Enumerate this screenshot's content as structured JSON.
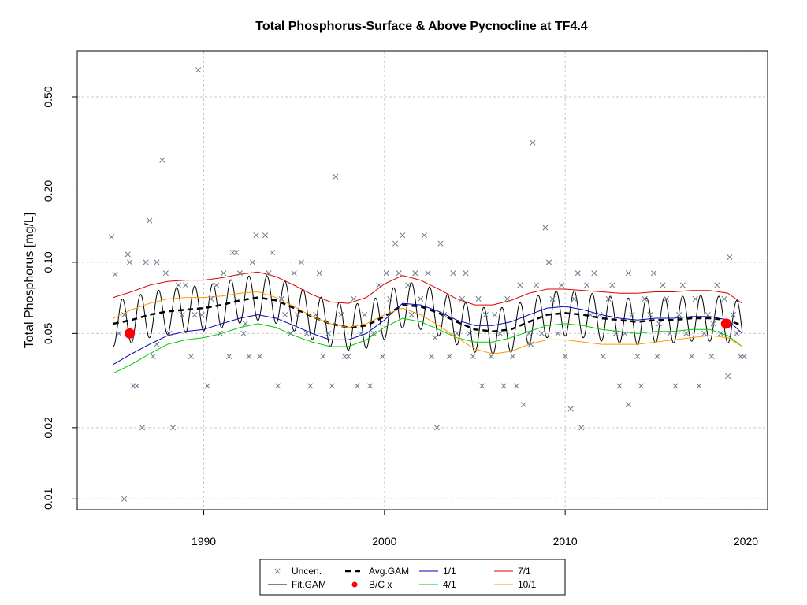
{
  "chart_data": {
    "type": "line",
    "title": "Total Phosphorus-Surface & Above Pycnocline at TF4.4",
    "xlabel": "",
    "ylabel": "Total Phosphorus [mg/L]",
    "y_scale": "log",
    "xlim": [
      1983.0,
      2021.2
    ],
    "ylim": [
      0.009,
      0.78
    ],
    "x_ticks": [
      1990,
      2000,
      2010,
      2020
    ],
    "y_ticks": [
      0.01,
      0.02,
      0.05,
      0.1,
      0.2,
      0.5
    ],
    "y_tick_labels": [
      "0.01",
      "0.02",
      "0.05",
      "0.10",
      "0.20",
      "0.50"
    ],
    "grid": true,
    "legend_position": "bottom",
    "legend": [
      {
        "label": "Uncen.",
        "kind": "x-marker",
        "color": "#6b7a8f"
      },
      {
        "label": "Avg.GAM",
        "kind": "dashed-line",
        "color": "#000000"
      },
      {
        "label": "1/1",
        "kind": "line",
        "color": "#0000bb"
      },
      {
        "label": "7/1",
        "kind": "line",
        "color": "#dd0000"
      },
      {
        "label": "Fit.GAM",
        "kind": "line",
        "color": "#000000"
      },
      {
        "label": "B/C x",
        "kind": "red-dot",
        "color": "#ff0000"
      },
      {
        "label": "4/1",
        "kind": "line",
        "color": "#00cc00"
      },
      {
        "label": "10/1",
        "kind": "line",
        "color": "#ff9900"
      }
    ],
    "series": [
      {
        "name": "Avg.GAM",
        "color": "#000000",
        "style": "dashed",
        "x": [
          1985.0,
          1986.0,
          1987.0,
          1988.0,
          1989.0,
          1990.0,
          1991.0,
          1992.0,
          1993.0,
          1994.0,
          1995.0,
          1996.0,
          1997.0,
          1998.0,
          1999.0,
          2000.0,
          2001.0,
          2002.0,
          2003.0,
          2004.0,
          2005.0,
          2006.0,
          2007.0,
          2008.0,
          2009.0,
          2010.0,
          2011.0,
          2012.0,
          2013.0,
          2014.0,
          2015.0,
          2016.0,
          2017.0,
          2018.0,
          2019.0,
          2019.8
        ],
        "y": [
          0.055,
          0.057,
          0.06,
          0.062,
          0.063,
          0.064,
          0.066,
          0.069,
          0.071,
          0.069,
          0.064,
          0.059,
          0.055,
          0.053,
          0.054,
          0.059,
          0.066,
          0.065,
          0.061,
          0.056,
          0.052,
          0.051,
          0.052,
          0.056,
          0.06,
          0.061,
          0.06,
          0.058,
          0.057,
          0.056,
          0.057,
          0.057,
          0.058,
          0.058,
          0.057,
          0.054
        ]
      },
      {
        "name": "1/1",
        "color": "#0000bb",
        "style": "solid",
        "x": [
          1985.0,
          1986.0,
          1987.0,
          1988.0,
          1989.0,
          1990.0,
          1991.0,
          1992.0,
          1993.0,
          1994.0,
          1995.0,
          1996.0,
          1997.0,
          1998.0,
          1999.0,
          2000.0,
          2001.0,
          2002.0,
          2003.0,
          2004.0,
          2005.0,
          2006.0,
          2007.0,
          2008.0,
          2009.0,
          2010.0,
          2011.0,
          2012.0,
          2013.0,
          2014.0,
          2015.0,
          2016.0,
          2017.0,
          2018.0,
          2019.0,
          2019.8
        ],
        "y": [
          0.037,
          0.041,
          0.045,
          0.049,
          0.051,
          0.052,
          0.055,
          0.058,
          0.06,
          0.058,
          0.054,
          0.05,
          0.047,
          0.047,
          0.05,
          0.057,
          0.067,
          0.066,
          0.062,
          0.057,
          0.054,
          0.054,
          0.056,
          0.06,
          0.064,
          0.065,
          0.063,
          0.06,
          0.058,
          0.057,
          0.058,
          0.058,
          0.059,
          0.059,
          0.057,
          0.05
        ]
      },
      {
        "name": "4/1",
        "color": "#00cc00",
        "style": "solid",
        "x": [
          1985.0,
          1986.0,
          1987.0,
          1988.0,
          1989.0,
          1990.0,
          1991.0,
          1992.0,
          1993.0,
          1994.0,
          1995.0,
          1996.0,
          1997.0,
          1998.0,
          1999.0,
          2000.0,
          2001.0,
          2002.0,
          2003.0,
          2004.0,
          2005.0,
          2006.0,
          2007.0,
          2008.0,
          2009.0,
          2010.0,
          2011.0,
          2012.0,
          2013.0,
          2014.0,
          2015.0,
          2016.0,
          2017.0,
          2018.0,
          2019.0,
          2019.8
        ],
        "y": [
          0.034,
          0.037,
          0.041,
          0.045,
          0.047,
          0.048,
          0.05,
          0.053,
          0.055,
          0.053,
          0.049,
          0.046,
          0.044,
          0.044,
          0.047,
          0.053,
          0.058,
          0.056,
          0.052,
          0.048,
          0.046,
          0.046,
          0.048,
          0.051,
          0.054,
          0.055,
          0.054,
          0.052,
          0.051,
          0.05,
          0.051,
          0.051,
          0.052,
          0.052,
          0.049,
          0.044
        ]
      },
      {
        "name": "7/1",
        "color": "#dd0000",
        "style": "solid",
        "x": [
          1985.0,
          1986.0,
          1987.0,
          1988.0,
          1989.0,
          1990.0,
          1991.0,
          1992.0,
          1993.0,
          1994.0,
          1995.0,
          1996.0,
          1997.0,
          1998.0,
          1999.0,
          2000.0,
          2001.0,
          2002.0,
          2003.0,
          2004.0,
          2005.0,
          2006.0,
          2007.0,
          2008.0,
          2009.0,
          2010.0,
          2011.0,
          2012.0,
          2013.0,
          2014.0,
          2015.0,
          2016.0,
          2017.0,
          2018.0,
          2019.0,
          2019.8
        ],
        "y": [
          0.071,
          0.075,
          0.08,
          0.083,
          0.084,
          0.084,
          0.086,
          0.089,
          0.091,
          0.087,
          0.08,
          0.073,
          0.068,
          0.067,
          0.071,
          0.081,
          0.088,
          0.084,
          0.077,
          0.07,
          0.066,
          0.066,
          0.069,
          0.074,
          0.077,
          0.077,
          0.076,
          0.075,
          0.074,
          0.074,
          0.075,
          0.075,
          0.076,
          0.076,
          0.074,
          0.067
        ]
      },
      {
        "name": "10/1",
        "color": "#ff9900",
        "style": "solid",
        "x": [
          1985.0,
          1986.0,
          1987.0,
          1988.0,
          1989.0,
          1990.0,
          1991.0,
          1992.0,
          1993.0,
          1994.0,
          1995.0,
          1996.0,
          1997.0,
          1998.0,
          1999.0,
          2000.0,
          2001.0,
          2002.0,
          2003.0,
          2004.0,
          2005.0,
          2006.0,
          2007.0,
          2008.0,
          2009.0,
          2010.0,
          2011.0,
          2012.0,
          2013.0,
          2014.0,
          2015.0,
          2016.0,
          2017.0,
          2018.0,
          2019.0,
          2019.8
        ],
        "y": [
          0.058,
          0.063,
          0.067,
          0.07,
          0.071,
          0.071,
          0.072,
          0.074,
          0.075,
          0.071,
          0.065,
          0.059,
          0.055,
          0.053,
          0.055,
          0.06,
          0.064,
          0.06,
          0.054,
          0.048,
          0.043,
          0.041,
          0.042,
          0.045,
          0.047,
          0.047,
          0.046,
          0.045,
          0.045,
          0.045,
          0.046,
          0.047,
          0.048,
          0.049,
          0.048,
          0.044
        ]
      },
      {
        "name": "Fit.GAM",
        "color": "#000000",
        "style": "solid",
        "seasonal_ratio": 1.25,
        "start_x": 1985.0,
        "end_x": 2019.8,
        "baseline": "Avg.GAM"
      }
    ],
    "points_uncensored": [
      [
        1984.9,
        0.128
      ],
      [
        1985.1,
        0.089
      ],
      [
        1985.3,
        0.05
      ],
      [
        1985.6,
        0.06
      ],
      [
        1985.8,
        0.108
      ],
      [
        1985.9,
        0.1
      ],
      [
        1986.1,
        0.03
      ],
      [
        1986.3,
        0.03
      ],
      [
        1986.6,
        0.02
      ],
      [
        1986.8,
        0.1
      ],
      [
        1987.0,
        0.15
      ],
      [
        1987.2,
        0.04
      ],
      [
        1987.4,
        0.1
      ],
      [
        1987.7,
        0.27
      ],
      [
        1987.9,
        0.09
      ],
      [
        1988.1,
        0.05
      ],
      [
        1988.3,
        0.02
      ],
      [
        1988.6,
        0.08
      ],
      [
        1988.8,
        0.06
      ],
      [
        1989.0,
        0.08
      ],
      [
        1989.3,
        0.04
      ],
      [
        1989.5,
        0.06
      ],
      [
        1989.7,
        0.65
      ],
      [
        1989.9,
        0.06
      ],
      [
        1990.2,
        0.03
      ],
      [
        1990.4,
        0.07
      ],
      [
        1990.7,
        0.08
      ],
      [
        1990.9,
        0.05
      ],
      [
        1991.1,
        0.09
      ],
      [
        1991.4,
        0.04
      ],
      [
        1991.6,
        0.11
      ],
      [
        1991.8,
        0.11
      ],
      [
        1992.0,
        0.09
      ],
      [
        1992.2,
        0.05
      ],
      [
        1992.5,
        0.04
      ],
      [
        1992.7,
        0.1
      ],
      [
        1992.9,
        0.13
      ],
      [
        1993.1,
        0.04
      ],
      [
        1993.4,
        0.13
      ],
      [
        1993.6,
        0.09
      ],
      [
        1993.8,
        0.11
      ],
      [
        1994.1,
        0.03
      ],
      [
        1994.3,
        0.07
      ],
      [
        1994.5,
        0.06
      ],
      [
        1994.8,
        0.05
      ],
      [
        1995.0,
        0.09
      ],
      [
        1995.2,
        0.06
      ],
      [
        1995.4,
        0.1
      ],
      [
        1995.7,
        0.05
      ],
      [
        1995.9,
        0.03
      ],
      [
        1996.2,
        0.06
      ],
      [
        1996.4,
        0.09
      ],
      [
        1996.6,
        0.04
      ],
      [
        1996.9,
        0.05
      ],
      [
        1997.1,
        0.03
      ],
      [
        1997.3,
        0.23
      ],
      [
        1997.6,
        0.06
      ],
      [
        1997.8,
        0.04
      ],
      [
        1998.0,
        0.04
      ],
      [
        1998.3,
        0.07
      ],
      [
        1998.5,
        0.03
      ],
      [
        1998.7,
        0.05
      ],
      [
        1998.9,
        0.06
      ],
      [
        1999.2,
        0.03
      ],
      [
        1999.4,
        0.05
      ],
      [
        1999.7,
        0.08
      ],
      [
        1999.9,
        0.04
      ],
      [
        2000.1,
        0.09
      ],
      [
        2000.3,
        0.07
      ],
      [
        2000.6,
        0.12
      ],
      [
        2000.8,
        0.09
      ],
      [
        2001.0,
        0.13
      ],
      [
        2001.3,
        0.08
      ],
      [
        2001.5,
        0.06
      ],
      [
        2001.7,
        0.09
      ],
      [
        2002.0,
        0.07
      ],
      [
        2002.2,
        0.13
      ],
      [
        2002.4,
        0.09
      ],
      [
        2002.6,
        0.04
      ],
      [
        2002.9,
        0.02
      ],
      [
        2003.1,
        0.12
      ],
      [
        2003.3,
        0.06
      ],
      [
        2003.6,
        0.04
      ],
      [
        2003.8,
        0.09
      ],
      [
        2004.0,
        0.05
      ],
      [
        2004.3,
        0.07
      ],
      [
        2004.5,
        0.09
      ],
      [
        2004.7,
        0.05
      ],
      [
        2004.9,
        0.04
      ],
      [
        2005.2,
        0.07
      ],
      [
        2005.4,
        0.03
      ],
      [
        2005.6,
        0.06
      ],
      [
        2005.9,
        0.04
      ],
      [
        2006.1,
        0.06
      ],
      [
        2006.4,
        0.05
      ],
      [
        2006.6,
        0.03
      ],
      [
        2006.8,
        0.07
      ],
      [
        2007.1,
        0.04
      ],
      [
        2007.3,
        0.03
      ],
      [
        2007.5,
        0.08
      ],
      [
        2007.7,
        0.025
      ],
      [
        2008.0,
        0.05
      ],
      [
        2008.2,
        0.32
      ],
      [
        2008.4,
        0.08
      ],
      [
        2008.7,
        0.05
      ],
      [
        2008.9,
        0.14
      ],
      [
        2009.1,
        0.1
      ],
      [
        2009.3,
        0.07
      ],
      [
        2009.6,
        0.05
      ],
      [
        2009.8,
        0.08
      ],
      [
        2010.0,
        0.04
      ],
      [
        2010.3,
        0.024
      ],
      [
        2010.5,
        0.07
      ],
      [
        2010.7,
        0.09
      ],
      [
        2010.9,
        0.02
      ],
      [
        2011.2,
        0.08
      ],
      [
        2011.4,
        0.06
      ],
      [
        2011.6,
        0.09
      ],
      [
        2011.9,
        0.06
      ],
      [
        2012.1,
        0.04
      ],
      [
        2012.4,
        0.07
      ],
      [
        2012.6,
        0.08
      ],
      [
        2012.8,
        0.05
      ],
      [
        2013.0,
        0.03
      ],
      [
        2013.3,
        0.05
      ],
      [
        2013.5,
        0.09
      ],
      [
        2013.7,
        0.06
      ],
      [
        2014.0,
        0.04
      ],
      [
        2014.2,
        0.03
      ],
      [
        2014.4,
        0.07
      ],
      [
        2014.7,
        0.06
      ],
      [
        2014.9,
        0.09
      ],
      [
        2015.1,
        0.04
      ],
      [
        2015.4,
        0.08
      ],
      [
        2015.6,
        0.07
      ],
      [
        2015.8,
        0.05
      ],
      [
        2016.1,
        0.03
      ],
      [
        2016.3,
        0.06
      ],
      [
        2016.5,
        0.08
      ],
      [
        2016.7,
        0.05
      ],
      [
        2017.0,
        0.04
      ],
      [
        2017.2,
        0.07
      ],
      [
        2017.4,
        0.03
      ],
      [
        2017.7,
        0.05
      ],
      [
        2017.9,
        0.06
      ],
      [
        2018.1,
        0.04
      ],
      [
        2018.4,
        0.08
      ],
      [
        2018.6,
        0.05
      ],
      [
        2018.8,
        0.07
      ],
      [
        2019.0,
        0.033
      ],
      [
        2019.1,
        0.105
      ],
      [
        2019.3,
        0.06
      ],
      [
        2019.5,
        0.05
      ],
      [
        2019.7,
        0.04
      ],
      [
        2019.9,
        0.04
      ],
      [
        1985.6,
        0.01
      ],
      [
        1987.4,
        0.045
      ],
      [
        1992.3,
        0.055
      ],
      [
        2002.8,
        0.048
      ],
      [
        2008.1,
        0.045
      ],
      [
        2013.5,
        0.025
      ],
      [
        2015.2,
        0.055
      ],
      [
        2018.2,
        0.055
      ]
    ],
    "points_bc": [
      [
        1985.9,
        0.05
      ],
      [
        2018.9,
        0.055
      ]
    ]
  }
}
